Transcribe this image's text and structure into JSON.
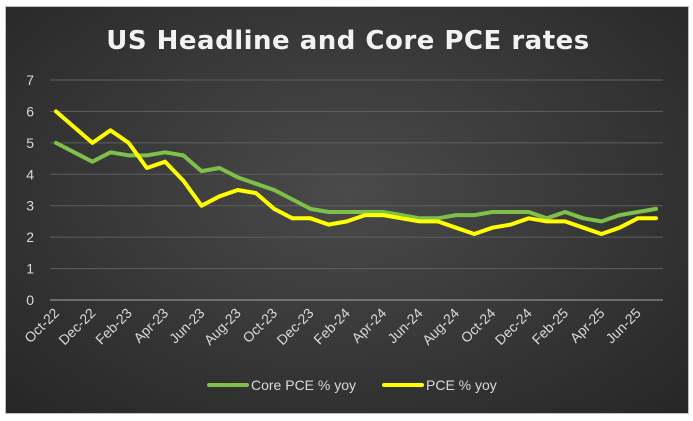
{
  "chart_data": {
    "type": "line",
    "title": "US Headline and Core PCE rates",
    "xlabel": "",
    "ylabel": "",
    "ylim": [
      0,
      7
    ],
    "y_ticks": [
      0,
      1,
      2,
      3,
      4,
      5,
      6,
      7
    ],
    "grid": true,
    "legend_position": "bottom",
    "x": [
      "Oct-22",
      "Nov-22",
      "Dec-22",
      "Jan-23",
      "Feb-23",
      "Mar-23",
      "Apr-23",
      "May-23",
      "Jun-23",
      "Jul-23",
      "Aug-23",
      "Sep-23",
      "Oct-23",
      "Nov-23",
      "Dec-23",
      "Jan-24",
      "Feb-24",
      "Mar-24",
      "Apr-24",
      "May-24",
      "Jun-24",
      "Jul-24",
      "Aug-24",
      "Sep-24",
      "Oct-24",
      "Nov-24",
      "Dec-24",
      "Jan-25",
      "Feb-25",
      "Mar-25",
      "Apr-25",
      "May-25",
      "Jun-25",
      "Jul-25"
    ],
    "x_tick_labels": [
      "Oct-22",
      "Dec-22",
      "Feb-23",
      "Apr-23",
      "Jun-23",
      "Aug-23",
      "Oct-23",
      "Dec-23",
      "Feb-24",
      "Apr-24",
      "Jun-24",
      "Aug-24",
      "Oct-24",
      "Dec-24",
      "Feb-25",
      "Apr-25",
      "Jun-25"
    ],
    "series": [
      {
        "name": "Core PCE % yoy",
        "color": "#7ec04a",
        "values": [
          5.0,
          4.7,
          4.4,
          4.7,
          4.6,
          4.6,
          4.7,
          4.6,
          4.1,
          4.2,
          3.9,
          3.7,
          3.5,
          3.2,
          2.9,
          2.8,
          2.8,
          2.8,
          2.8,
          2.7,
          2.6,
          2.6,
          2.7,
          2.7,
          2.8,
          2.8,
          2.8,
          2.6,
          2.8,
          2.6,
          2.5,
          2.7,
          2.8,
          2.9
        ]
      },
      {
        "name": "PCE % yoy",
        "color": "#ffff00",
        "values": [
          6.0,
          5.5,
          5.0,
          5.4,
          5.0,
          4.2,
          4.4,
          3.8,
          3.0,
          3.3,
          3.5,
          3.4,
          2.9,
          2.6,
          2.6,
          2.4,
          2.5,
          2.7,
          2.7,
          2.6,
          2.5,
          2.5,
          2.3,
          2.1,
          2.3,
          2.4,
          2.6,
          2.5,
          2.5,
          2.3,
          2.1,
          2.3,
          2.6,
          2.6
        ]
      }
    ]
  }
}
